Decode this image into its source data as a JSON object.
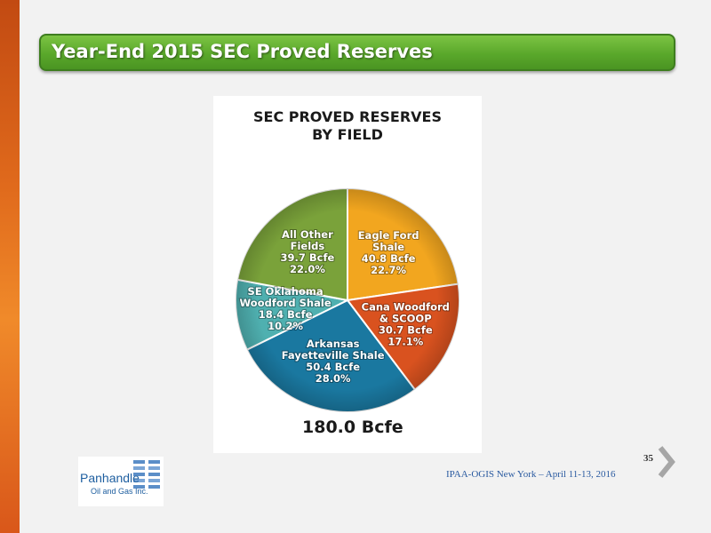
{
  "slide": {
    "title": "Year-End 2015 SEC Proved Reserves",
    "footer": "IPAA-OGIS New York – April 11-13, 2016",
    "page_number": "35"
  },
  "logo": {
    "name": "Panhandle",
    "sub": "Oil and Gas Inc."
  },
  "colors": {
    "accent_green": "#5aa82b",
    "side_orange": "#e06a1c"
  },
  "chart_data": {
    "type": "pie",
    "title_lines": [
      "SEC PROVED RESERVES",
      "BY FIELD"
    ],
    "total_label": "180.0 Bcfe",
    "slices": [
      {
        "lines": [
          "Eagle Ford",
          "Shale",
          "40.8 Bcfe",
          "22.7%"
        ],
        "value": 40.8,
        "percent": 22.7,
        "color": "#f2a61f"
      },
      {
        "lines": [
          "Cana Woodford",
          "& SCOOP",
          "30.7 Bcfe",
          "17.1%"
        ],
        "value": 30.7,
        "percent": 17.1,
        "color": "#d9521f"
      },
      {
        "lines": [
          "Arkansas",
          "Fayetteville Shale",
          "50.4 Bcfe",
          "28.0%"
        ],
        "value": 50.4,
        "percent": 28.0,
        "color": "#1a78a0"
      },
      {
        "lines": [
          "SE Oklahoma",
          "Woodford Shale",
          "18.4 Bcfe",
          "10.2%"
        ],
        "value": 18.4,
        "percent": 10.2,
        "color": "#4fb0b0"
      },
      {
        "lines": [
          "All Other",
          "Fields",
          "39.7 Bcfe",
          "22.0%"
        ],
        "value": 39.7,
        "percent": 22.0,
        "color": "#7aa23a"
      }
    ]
  }
}
